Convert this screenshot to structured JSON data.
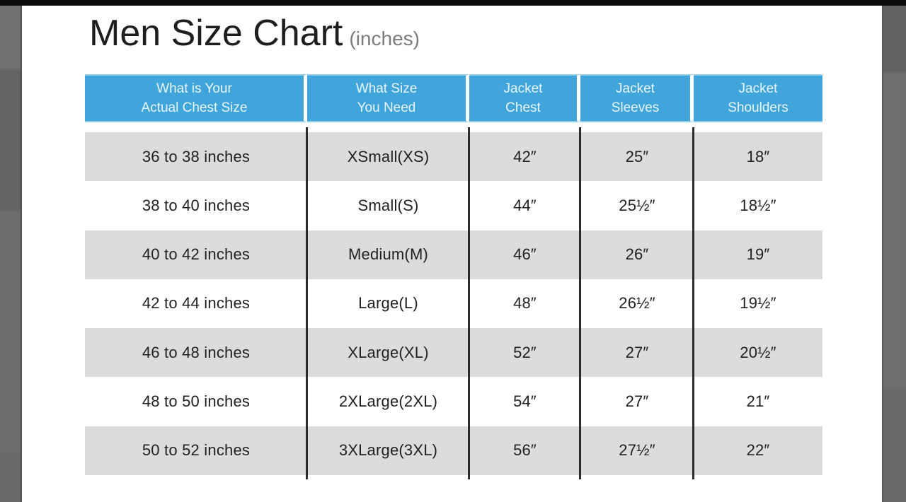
{
  "title": {
    "main": "Men Size Chart",
    "suffix": "(inches)"
  },
  "header": {
    "columns": [
      {
        "line1": "What is Your",
        "line2": "Actual Chest Size"
      },
      {
        "line1": "What Size",
        "line2": "You Need"
      },
      {
        "line1": "Jacket",
        "line2": "Chest"
      },
      {
        "line1": "Jacket",
        "line2": "Sleeves"
      },
      {
        "line1": "Jacket",
        "line2": "Shoulders"
      }
    ]
  },
  "chart_data": {
    "type": "table",
    "title": "Men Size Chart (inches)",
    "units": "inches",
    "columns": [
      "What is Your Actual Chest Size",
      "What Size You Need",
      "Jacket Chest",
      "Jacket Sleeves",
      "Jacket Shoulders"
    ],
    "rows": [
      [
        "36 to 38 inches",
        "XSmall(XS)",
        "42″",
        "25″",
        "18″"
      ],
      [
        "38 to 40 inches",
        "Small(S)",
        "44″",
        "25½″",
        "18½″"
      ],
      [
        "40 to 42 inches",
        "Medium(M)",
        "46″",
        "26″",
        "19″"
      ],
      [
        "42 to 44 inches",
        "Large(L)",
        "48″",
        "26½″",
        "19½″"
      ],
      [
        "46 to 48 inches",
        "XLarge(XL)",
        "52″",
        "27″",
        "20½″"
      ],
      [
        "48 to 50 inches",
        "2XLarge(2XL)",
        "54″",
        "27″",
        "21″"
      ],
      [
        "50 to 52 inches",
        "3XLarge(3XL)",
        "56″",
        "27½″",
        "22″"
      ]
    ]
  },
  "colors": {
    "header_bg": "#40a5da",
    "header_text": "#e9f5fc",
    "row_alt_bg": "#dcdcdc",
    "divider": "#2c2c2c",
    "side_strip": "#6b6b6b",
    "top_bar": "#0b0b0b",
    "title_text": "#1e1e1e",
    "title_suffix_text": "#7c7c7c"
  }
}
